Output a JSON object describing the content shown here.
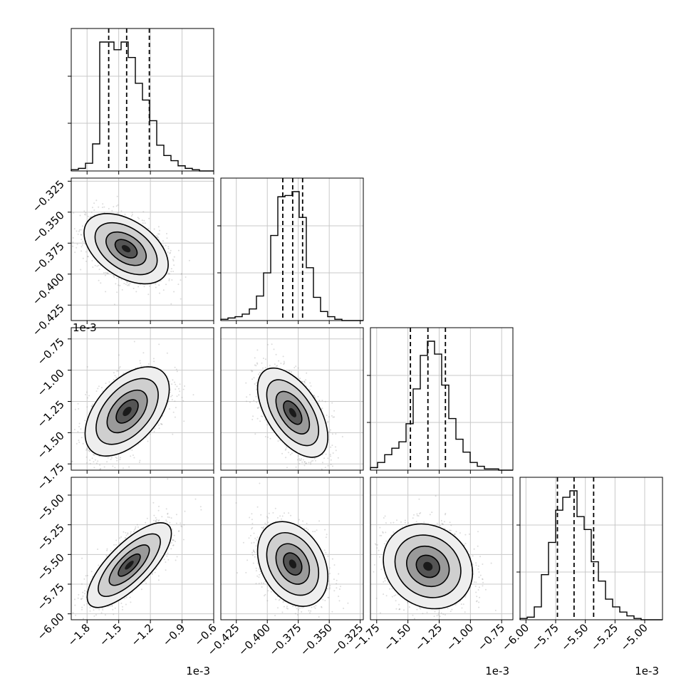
{
  "chart_data": {
    "type": "scatter",
    "style": {
      "grid": true,
      "quantile_line_style": "dashed",
      "point_color": "#9a9a9a",
      "line_color": "#000000"
    },
    "parameters": [
      {
        "multiplier": "1e-3",
        "range": [
          -1.95,
          -0.6
        ],
        "ticks": [
          -1.8,
          -1.5,
          -1.2,
          -0.9,
          -0.6
        ],
        "tick_labels": [
          "−1.8",
          "−1.5",
          "−1.2",
          "−0.9",
          "−0.6"
        ],
        "quantiles": [
          -1.595,
          -1.425,
          -1.21
        ],
        "hist_edges_start": -1.95,
        "hist_bin_width": 0.0675,
        "hist_counts": [
          1,
          2,
          6,
          21,
          100,
          100,
          94,
          100,
          88,
          68,
          55,
          39,
          20,
          12,
          8,
          4,
          2,
          1,
          0,
          0
        ]
      },
      {
        "multiplier": "",
        "range": [
          -0.4375,
          -0.3225
        ],
        "ticks": [
          -0.325,
          -0.35,
          -0.375,
          -0.4,
          -0.425
        ],
        "tick_labels": [
          "−0.325",
          "−0.350",
          "−0.375",
          "−0.400",
          "−0.425"
        ],
        "quantiles": [
          -0.3875,
          -0.3795,
          -0.3715
        ],
        "hist_edges_start": -0.4375,
        "hist_bin_width": 0.00575,
        "hist_counts": [
          1,
          2,
          3,
          5,
          9,
          19,
          37,
          66,
          96,
          97,
          100,
          80,
          41,
          18,
          7,
          3,
          1,
          0,
          0,
          0
        ]
      },
      {
        "multiplier": "1e-3",
        "range": [
          -1.8,
          -0.66
        ],
        "ticks": [
          -0.75,
          -1.0,
          -1.25,
          -1.5,
          -1.75
        ],
        "tick_labels": [
          "−0.75",
          "−1.00",
          "−1.25",
          "−1.50",
          "−1.75"
        ],
        "quantiles": [
          -1.48,
          -1.34,
          -1.2
        ],
        "hist_edges_start": -1.8,
        "hist_bin_width": 0.057,
        "hist_counts": [
          2,
          6,
          12,
          17,
          22,
          36,
          63,
          89,
          100,
          90,
          66,
          40,
          24,
          14,
          6,
          3,
          1,
          1,
          0,
          0
        ]
      },
      {
        "multiplier": "1e-3",
        "range": [
          -6.05,
          -4.85
        ],
        "ticks": [
          -6.0,
          -5.75,
          -5.5,
          -5.25,
          -5.0
        ],
        "tick_labels": [
          "−6.00",
          "−5.75",
          "−5.50",
          "−5.25",
          "−5.00"
        ],
        "quantiles": [
          -5.735,
          -5.595,
          -5.43
        ],
        "hist_edges_start": -6.05,
        "hist_bin_width": 0.06,
        "hist_counts": [
          1,
          2,
          10,
          35,
          60,
          85,
          95,
          100,
          80,
          70,
          45,
          30,
          16,
          10,
          6,
          3,
          1,
          0,
          0,
          0
        ]
      }
    ],
    "pairs": [
      {
        "x_param": 0,
        "y_param": 1,
        "mean": [
          -1.43,
          -0.3795
        ],
        "sd": [
          0.19,
          0.0135
        ],
        "rho": -0.45
      },
      {
        "x_param": 0,
        "y_param": 2,
        "mean": [
          -1.42,
          -1.33
        ],
        "sd": [
          0.19,
          0.17
        ],
        "rho": 0.5
      },
      {
        "x_param": 1,
        "y_param": 2,
        "mean": [
          -0.3795,
          -1.34
        ],
        "sd": [
          0.0135,
          0.17
        ],
        "rho": -0.55
      },
      {
        "x_param": 0,
        "y_param": 3,
        "mean": [
          -1.4,
          -5.59
        ],
        "sd": [
          0.19,
          0.17
        ],
        "rho": 0.75
      },
      {
        "x_param": 1,
        "y_param": 3,
        "mean": [
          -0.3795,
          -5.58
        ],
        "sd": [
          0.0135,
          0.17
        ],
        "rho": -0.3
      },
      {
        "x_param": 2,
        "y_param": 3,
        "mean": [
          -1.34,
          -5.6
        ],
        "sd": [
          0.17,
          0.17
        ],
        "rho": -0.15
      }
    ]
  }
}
